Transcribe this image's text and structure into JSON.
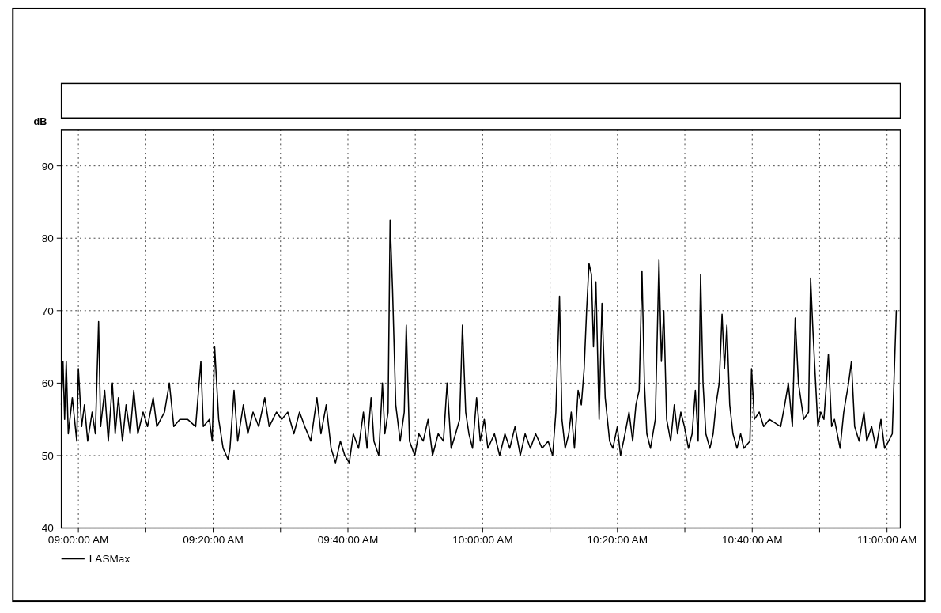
{
  "chart_data": {
    "type": "line",
    "ylabel": "dB",
    "xlim": [
      8.958,
      11.033
    ],
    "ylim": [
      40,
      95
    ],
    "yticks": [
      40,
      50,
      60,
      70,
      80,
      90
    ],
    "xticks": [
      {
        "value": 9,
        "label": "09:00:00 AM"
      },
      {
        "value": 9.1667,
        "label": null
      },
      {
        "value": 9.3333,
        "label": "09:20:00 AM"
      },
      {
        "value": 9.5,
        "label": null
      },
      {
        "value": 9.6667,
        "label": "09:40:00 AM"
      },
      {
        "value": 9.8333,
        "label": null
      },
      {
        "value": 10,
        "label": "10:00:00 AM"
      },
      {
        "value": 10.1667,
        "label": null
      },
      {
        "value": 10.3333,
        "label": "10:20:00 AM"
      },
      {
        "value": 10.5,
        "label": null
      },
      {
        "value": 10.6667,
        "label": "10:40:00 AM"
      },
      {
        "value": 10.8333,
        "label": null
      },
      {
        "value": 11,
        "label": "11:00:00 AM"
      }
    ],
    "grid": true,
    "legend": "bottom left",
    "line_style": "solid",
    "series": [
      {
        "name": "LASMax",
        "color": "#000000",
        "x": [
          8.958,
          8.962,
          8.966,
          8.97,
          8.975,
          8.985,
          8.996,
          9.0,
          9.008,
          9.015,
          9.023,
          9.034,
          9.042,
          9.05,
          9.055,
          9.065,
          9.074,
          9.084,
          9.091,
          9.099,
          9.109,
          9.118,
          9.128,
          9.137,
          9.147,
          9.16,
          9.171,
          9.185,
          9.194,
          9.213,
          9.225,
          9.236,
          9.251,
          9.27,
          9.29,
          9.303,
          9.309,
          9.324,
          9.331,
          9.337,
          9.347,
          9.358,
          9.37,
          9.375,
          9.385,
          9.394,
          9.408,
          9.419,
          9.432,
          9.446,
          9.461,
          9.472,
          9.49,
          9.503,
          9.518,
          9.533,
          9.547,
          9.56,
          9.575,
          9.59,
          9.6,
          9.613,
          9.625,
          9.636,
          9.648,
          9.659,
          9.67,
          9.68,
          9.693,
          9.705,
          9.714,
          9.724,
          9.731,
          9.743,
          9.752,
          9.758,
          9.766,
          9.771,
          9.777,
          9.785,
          9.796,
          9.806,
          9.811,
          9.819,
          9.832,
          9.842,
          9.853,
          9.865,
          9.876,
          9.89,
          9.903,
          9.912,
          9.922,
          9.933,
          9.943,
          9.95,
          9.958,
          9.966,
          9.975,
          9.985,
          9.994,
          10.004,
          10.013,
          10.029,
          10.042,
          10.055,
          10.067,
          10.08,
          10.093,
          10.105,
          10.118,
          10.131,
          10.147,
          10.162,
          10.173,
          10.181,
          10.19,
          10.196,
          10.204,
          10.213,
          10.219,
          10.227,
          10.236,
          10.244,
          10.251,
          10.257,
          10.263,
          10.269,
          10.274,
          10.28,
          10.288,
          10.295,
          10.303,
          10.314,
          10.322,
          10.333,
          10.341,
          10.352,
          10.362,
          10.371,
          10.379,
          10.387,
          10.394,
          10.4,
          10.406,
          10.415,
          10.427,
          10.436,
          10.442,
          10.448,
          10.455,
          10.465,
          10.474,
          10.482,
          10.49,
          10.499,
          10.509,
          10.518,
          10.526,
          10.533,
          10.539,
          10.545,
          10.552,
          10.562,
          10.57,
          10.577,
          10.585,
          10.592,
          10.598,
          10.604,
          10.611,
          10.619,
          10.629,
          10.638,
          10.646,
          10.661,
          10.665,
          10.672,
          10.684,
          10.695,
          10.709,
          10.737,
          10.747,
          10.756,
          10.766,
          10.773,
          10.781,
          10.794,
          10.806,
          10.811,
          10.817,
          10.829,
          10.836,
          10.844,
          10.855,
          10.863,
          10.87,
          10.884,
          10.893,
          10.905,
          10.912,
          10.92,
          10.931,
          10.943,
          10.95,
          10.962,
          10.973,
          10.985,
          10.994,
          11.004,
          11.013,
          11.023
        ],
        "values": [
          57,
          63,
          55,
          63,
          53,
          58,
          52,
          62,
          54,
          57,
          52,
          56,
          53,
          68.5,
          54,
          59,
          52,
          60,
          53,
          58,
          52,
          57,
          53,
          59,
          53,
          56,
          54,
          58,
          54,
          56,
          60,
          54,
          55,
          55,
          54,
          63,
          54,
          55,
          52,
          65,
          55,
          51,
          49.5,
          51,
          59,
          52,
          57,
          53,
          56,
          54,
          58,
          54,
          56,
          55,
          56,
          53,
          56,
          54,
          52,
          58,
          53,
          57,
          51,
          49,
          52,
          50,
          49,
          53,
          51,
          56,
          51,
          58,
          52,
          50,
          60,
          53,
          56,
          82.5,
          73,
          57,
          52,
          56,
          68,
          52,
          50,
          53,
          52,
          55,
          50,
          53,
          52,
          60,
          51,
          53,
          55,
          68,
          56,
          53,
          51,
          58,
          52,
          55,
          51,
          53,
          50,
          53,
          51,
          54,
          50,
          53,
          51,
          53,
          51,
          52,
          50,
          56,
          72,
          55,
          51,
          53,
          56,
          51,
          59,
          57,
          62,
          70,
          76.5,
          75,
          65,
          74,
          55,
          71,
          58,
          52,
          51,
          54,
          50,
          53,
          56,
          52,
          57,
          59,
          75.5,
          60,
          53,
          51,
          55,
          77,
          63,
          70,
          55,
          52,
          57,
          53,
          56,
          54,
          51,
          53,
          59,
          52,
          75,
          60,
          53,
          51,
          53,
          57,
          60,
          69.5,
          62,
          68,
          57,
          53,
          51,
          53,
          51,
          52,
          62,
          55,
          56,
          54,
          55,
          54,
          57,
          60,
          54,
          69,
          60,
          55,
          56,
          74.5,
          67,
          54,
          56,
          55,
          64,
          54,
          55,
          51,
          56,
          60,
          63,
          54,
          52,
          56,
          52,
          54,
          51,
          55,
          51,
          52,
          53,
          70
        ]
      }
    ]
  }
}
